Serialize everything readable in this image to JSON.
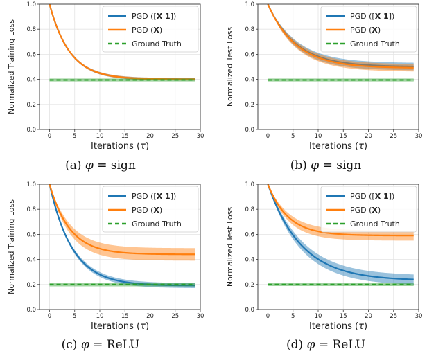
{
  "legend_labels": [
    "PGD ([X 1])",
    "PGD (X)",
    "Ground Truth"
  ],
  "colors": {
    "blue": "#1f77b4",
    "orange": "#ff7f0e",
    "green": "#2ca02c"
  },
  "chart_data": [
    {
      "type": "line",
      "caption": "(a) φ = sign",
      "xlabel": "Iterations (τ)",
      "ylabel": "Normalized Training Loss",
      "xlim": [
        -2,
        30
      ],
      "ylim": [
        0.0,
        1.0
      ],
      "xticks": [
        0,
        5,
        10,
        15,
        20,
        25,
        30
      ],
      "yticks": [
        0.0,
        0.2,
        0.4,
        0.6,
        0.8,
        1.0
      ],
      "legend": "top-right",
      "series": [
        {
          "name": "PGD ([X 1])",
          "color": "blue",
          "style": "solid",
          "y0": 1.0,
          "yinf": 0.4,
          "rate": 0.25,
          "band": [
            0.0,
            0.01
          ]
        },
        {
          "name": "PGD (X)",
          "color": "orange",
          "style": "solid",
          "y0": 1.0,
          "yinf": 0.4,
          "rate": 0.25,
          "band": [
            0.0,
            0.01
          ]
        },
        {
          "name": "Ground Truth",
          "color": "green",
          "style": "dashed",
          "y0": 0.395,
          "yinf": 0.395,
          "rate": 0,
          "band": [
            0.012,
            0.012
          ]
        }
      ],
      "x_range": [
        0,
        29
      ]
    },
    {
      "type": "line",
      "caption": "(b) φ = sign",
      "xlabel": "Iterations (τ)",
      "ylabel": "Normalized Test Loss",
      "xlim": [
        -2,
        30
      ],
      "ylim": [
        0.0,
        1.0
      ],
      "xticks": [
        0,
        5,
        10,
        15,
        20,
        25,
        30
      ],
      "yticks": [
        0.0,
        0.2,
        0.4,
        0.6,
        0.8,
        1.0
      ],
      "legend": "top-right",
      "series": [
        {
          "name": "PGD ([X 1])",
          "color": "blue",
          "style": "solid",
          "y0": 1.0,
          "yinf": 0.5,
          "rate": 0.18,
          "band": [
            0.0,
            0.03
          ]
        },
        {
          "name": "PGD (X)",
          "color": "orange",
          "style": "solid",
          "y0": 1.0,
          "yinf": 0.49,
          "rate": 0.18,
          "band": [
            0.0,
            0.03
          ]
        },
        {
          "name": "Ground Truth",
          "color": "green",
          "style": "dashed",
          "y0": 0.395,
          "yinf": 0.395,
          "rate": 0,
          "band": [
            0.012,
            0.012
          ]
        }
      ],
      "x_range": [
        0,
        29
      ]
    },
    {
      "type": "line",
      "caption": "(c) φ = ReLU",
      "xlabel": "Iterations (τ)",
      "ylabel": "Normalized Training Loss",
      "xlim": [
        -2,
        30
      ],
      "ylim": [
        0.0,
        1.0
      ],
      "xticks": [
        0,
        5,
        10,
        15,
        20,
        25,
        30
      ],
      "yticks": [
        0.0,
        0.2,
        0.4,
        0.6,
        0.8,
        1.0
      ],
      "legend": "top-right",
      "series": [
        {
          "name": "PGD ([X 1])",
          "color": "blue",
          "style": "solid",
          "y0": 1.0,
          "yinf": 0.19,
          "rate": 0.22,
          "band": [
            0.0,
            0.02
          ]
        },
        {
          "name": "PGD (X)",
          "color": "orange",
          "style": "solid",
          "y0": 1.0,
          "yinf": 0.44,
          "rate": 0.25,
          "band": [
            0.0,
            0.05
          ]
        },
        {
          "name": "Ground Truth",
          "color": "green",
          "style": "dashed",
          "y0": 0.2,
          "yinf": 0.2,
          "rate": 0,
          "band": [
            0.015,
            0.015
          ]
        }
      ],
      "x_range": [
        0,
        29
      ]
    },
    {
      "type": "line",
      "caption": "(d) φ = ReLU",
      "xlabel": "Iterations (τ)",
      "ylabel": "Normalized Test Loss",
      "xlim": [
        -2,
        30
      ],
      "ylim": [
        0.0,
        1.0
      ],
      "xticks": [
        0,
        5,
        10,
        15,
        20,
        25,
        30
      ],
      "yticks": [
        0.0,
        0.2,
        0.4,
        0.6,
        0.8,
        1.0
      ],
      "legend": "top-right",
      "series": [
        {
          "name": "PGD ([X 1])",
          "color": "blue",
          "style": "solid",
          "y0": 1.0,
          "yinf": 0.23,
          "rate": 0.15,
          "band": [
            0.0,
            0.04
          ]
        },
        {
          "name": "PGD (X)",
          "color": "orange",
          "style": "solid",
          "y0": 1.0,
          "yinf": 0.59,
          "rate": 0.25,
          "band": [
            0.0,
            0.04
          ]
        },
        {
          "name": "Ground Truth",
          "color": "green",
          "style": "dashed",
          "y0": 0.2,
          "yinf": 0.2,
          "rate": 0,
          "band": [
            0.012,
            0.012
          ]
        }
      ],
      "x_range": [
        0,
        29
      ]
    }
  ]
}
